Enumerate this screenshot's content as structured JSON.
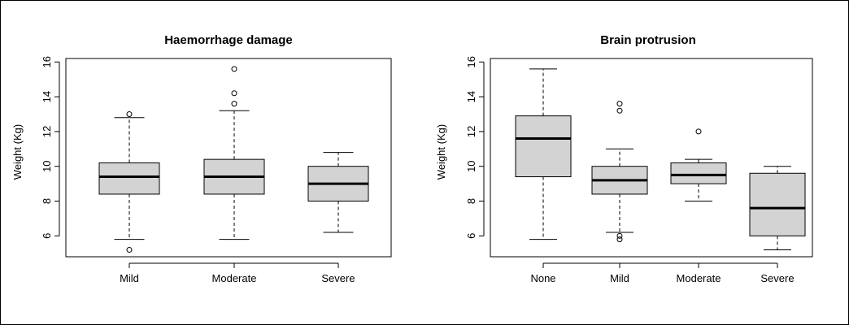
{
  "chart_data": [
    {
      "type": "box",
      "title": "Haemorrhage damage",
      "ylabel": "Weight (Kg)",
      "xlabel": "",
      "ylim": [
        4.8,
        16.2
      ],
      "yticks": [
        6,
        8,
        10,
        12,
        14,
        16
      ],
      "categories": [
        "Mild",
        "Moderate",
        "Severe"
      ],
      "boxes": [
        {
          "whisker_low": 5.8,
          "q1": 8.4,
          "median": 9.4,
          "q3": 10.2,
          "whisker_high": 12.8,
          "outliers": [
            5.2,
            13.0
          ]
        },
        {
          "whisker_low": 5.8,
          "q1": 8.4,
          "median": 9.4,
          "q3": 10.4,
          "whisker_high": 13.2,
          "outliers": [
            13.6,
            14.2,
            15.6
          ]
        },
        {
          "whisker_low": 6.2,
          "q1": 8.0,
          "median": 9.0,
          "q3": 10.0,
          "whisker_high": 10.8,
          "outliers": []
        }
      ],
      "box_fill": "#d3d3d3"
    },
    {
      "type": "box",
      "title": "Brain protrusion",
      "ylabel": "Weight (Kg)",
      "xlabel": "",
      "ylim": [
        4.8,
        16.2
      ],
      "yticks": [
        6,
        8,
        10,
        12,
        14,
        16
      ],
      "categories": [
        "None",
        "Mild",
        "Moderate",
        "Severe"
      ],
      "boxes": [
        {
          "whisker_low": 5.8,
          "q1": 9.4,
          "median": 11.6,
          "q3": 12.9,
          "whisker_high": 15.6,
          "outliers": []
        },
        {
          "whisker_low": 6.2,
          "q1": 8.4,
          "median": 9.2,
          "q3": 10.0,
          "whisker_high": 11.0,
          "outliers": [
            5.8,
            6.0,
            13.2,
            13.6
          ]
        },
        {
          "whisker_low": 8.0,
          "q1": 9.0,
          "median": 9.5,
          "q3": 10.2,
          "whisker_high": 10.4,
          "outliers": [
            12.0
          ]
        },
        {
          "whisker_low": 5.2,
          "q1": 6.0,
          "median": 7.6,
          "q3": 9.6,
          "whisker_high": 10.0,
          "outliers": []
        }
      ],
      "box_fill": "#d3d3d3"
    }
  ]
}
